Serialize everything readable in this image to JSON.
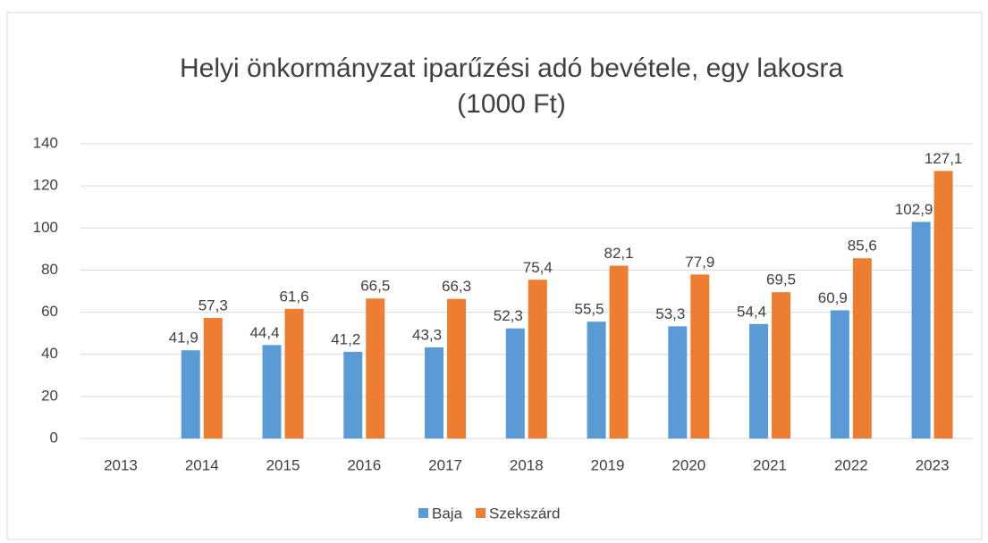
{
  "chart_data": {
    "type": "bar",
    "title": [
      "Helyi önkormányzat iparűzési adó bevétele, egy lakosra",
      "(1000 Ft)"
    ],
    "categories": [
      "2013",
      "2014",
      "2015",
      "2016",
      "2017",
      "2018",
      "2019",
      "2020",
      "2021",
      "2022",
      "2023"
    ],
    "series": [
      {
        "name": "Baja",
        "color": "#5b9bd5",
        "values": [
          null,
          41.9,
          44.4,
          41.2,
          43.3,
          52.3,
          55.5,
          53.3,
          54.4,
          60.9,
          102.9
        ],
        "value_labels": [
          null,
          "41,9",
          "44,4",
          "41,2",
          "43,3",
          "52,3",
          "55,5",
          "53,3",
          "54,4",
          "60,9",
          "102,9"
        ]
      },
      {
        "name": "Szekszárd",
        "color": "#ed7d31",
        "values": [
          null,
          57.3,
          61.6,
          66.5,
          66.3,
          75.4,
          82.1,
          77.9,
          69.5,
          85.6,
          127.1
        ],
        "value_labels": [
          null,
          "57,3",
          "61,6",
          "66,5",
          "66,3",
          "75,4",
          "82,1",
          "77,9",
          "69,5",
          "85,6",
          "127,1"
        ]
      }
    ],
    "ylim": [
      0,
      140
    ],
    "yticks": [
      0,
      20,
      40,
      60,
      80,
      100,
      120,
      140
    ],
    "grid": true,
    "legend": "bottom"
  }
}
